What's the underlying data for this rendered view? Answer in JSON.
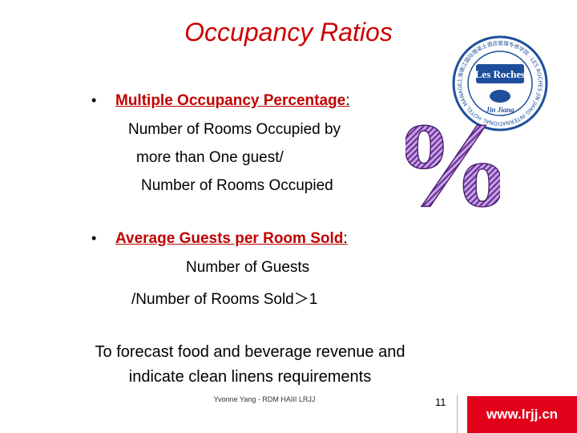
{
  "slide": {
    "title": "Occupancy Ratios",
    "bullets": [
      {
        "term": "Multiple Occupancy Percentage",
        "colon": ":",
        "lines": [
          "Number of Rooms Occupied by",
          "more than One guest/",
          "Number of Rooms Occupied"
        ]
      },
      {
        "term": "Average Guests per Room Sold",
        "colon": ":",
        "lines": [
          "Number of Guests",
          "/Number of Rooms Sold＞1"
        ]
      }
    ],
    "bottom_lines": [
      "To forecast food and beverage revenue and",
      "indicate clean linens requirements"
    ],
    "bullet_glyph": "•",
    "percent_glyph": "%",
    "accent_color": "#cc0000"
  },
  "logo": {
    "brand": "Les Roches",
    "sub": "Jin Jiang",
    "ring_text": "上海锦江国际理诺士酒店管理专修学院 · LES ROCHES JIN JIANG INTERNATIONAL HOTEL MANAGEMENT COLLEGE ·"
  },
  "footer": {
    "credit": "Yvonne Yang - RDM HAIII LRJJ",
    "page_number": "11",
    "site": "www.lrjj.cn"
  }
}
